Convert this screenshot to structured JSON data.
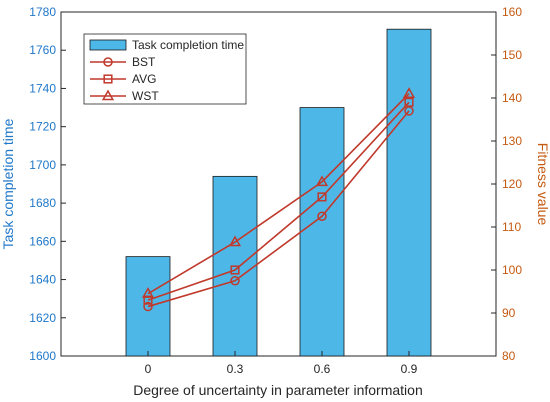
{
  "chart_data": {
    "type": "bar",
    "categories": [
      "0",
      "0.3",
      "0.6",
      "0.9"
    ],
    "xlabel": "Degree of uncertainty in parameter information",
    "y_left": {
      "label": "Task completion time",
      "range": [
        1600,
        1780
      ],
      "ticks": [
        1600,
        1620,
        1640,
        1660,
        1680,
        1700,
        1720,
        1740,
        1760,
        1780
      ],
      "color": "#1f77c9"
    },
    "y_right": {
      "label": "Fitness value",
      "range": [
        80,
        160
      ],
      "ticks": [
        80,
        90,
        100,
        110,
        120,
        130,
        140,
        150,
        160
      ],
      "color": "#c55a11"
    },
    "bar_series": {
      "name": "Task completion time",
      "values": [
        1652,
        1694,
        1730,
        1771
      ],
      "color": "#4db8e8"
    },
    "line_series": [
      {
        "name": "BST",
        "marker": "circle",
        "values": [
          91.5,
          97.5,
          112.5,
          137
        ],
        "color": "#c0392b"
      },
      {
        "name": "AVG",
        "marker": "square",
        "values": [
          93,
          100,
          117,
          139
        ],
        "color": "#c0392b"
      },
      {
        "name": "WST",
        "marker": "triangle",
        "values": [
          94.5,
          106.5,
          120.5,
          141
        ],
        "color": "#c0392b"
      }
    ],
    "grid": false,
    "legend_position": "top-left"
  }
}
